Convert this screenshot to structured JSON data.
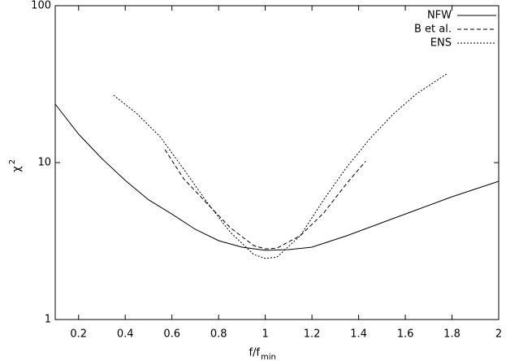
{
  "chart_data": {
    "type": "line",
    "x_label": "f/f",
    "x_label_subscript": "min",
    "y_label": "χ",
    "y_label_superscript": "2",
    "xlim": [
      0.1,
      2
    ],
    "xticks": [
      0.2,
      0.4,
      0.6,
      0.8,
      1,
      1.2,
      1.4,
      1.6,
      1.8,
      2
    ],
    "ylim": [
      1,
      100
    ],
    "yticks": [
      1,
      10,
      100
    ],
    "log_y": true,
    "grid": false,
    "legend": "top-right",
    "series": [
      {
        "name": "NFW",
        "color": "#000000",
        "dash": "solid",
        "x": [
          0.1,
          0.2,
          0.3,
          0.4,
          0.5,
          0.6,
          0.7,
          0.8,
          0.9,
          1.0,
          1.1,
          1.2,
          1.35,
          1.5,
          1.8,
          2.0
        ],
        "values": [
          23.6,
          15.2,
          10.6,
          7.7,
          5.8,
          4.7,
          3.76,
          3.18,
          2.89,
          2.76,
          2.79,
          2.89,
          3.42,
          4.14,
          6.06,
          7.6
        ]
      },
      {
        "name": "B et al.",
        "color": "#000000",
        "dash": "dashed",
        "x": [
          0.57,
          0.65,
          0.75,
          0.85,
          0.95,
          1.0,
          1.05,
          1.15,
          1.25,
          1.35,
          1.43
        ],
        "values": [
          12.1,
          7.9,
          5.5,
          3.85,
          2.96,
          2.82,
          2.85,
          3.42,
          4.77,
          7.4,
          10.2
        ]
      },
      {
        "name": "ENS",
        "color": "#000000",
        "dash": "dotted",
        "x": [
          0.35,
          0.45,
          0.55,
          0.65,
          0.75,
          0.85,
          0.95,
          1.0,
          1.05,
          1.15,
          1.25,
          1.35,
          1.45,
          1.55,
          1.65,
          1.78
        ],
        "values": [
          26.9,
          20.5,
          14.6,
          9.1,
          5.6,
          3.6,
          2.6,
          2.45,
          2.5,
          3.42,
          5.8,
          9.4,
          14.3,
          20.5,
          27.6,
          37
        ]
      }
    ]
  }
}
